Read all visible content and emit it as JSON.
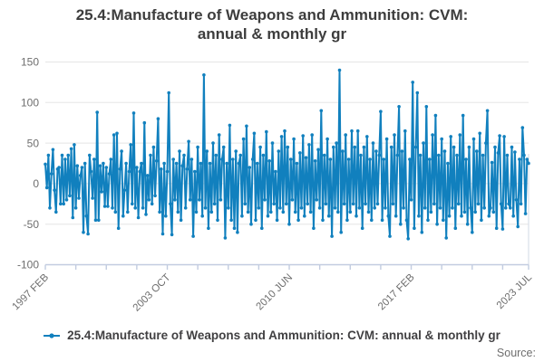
{
  "title": {
    "line1": "25.4:Manufacture of Weapons and Ammunition: CVM:",
    "line2": "annual & monthly gr"
  },
  "legend": {
    "label": "25.4:Manufacture of Weapons and Ammunition: CVM: annual & monthly gr"
  },
  "footer": {
    "source_label": "Source:"
  },
  "colors": {
    "line": "#1180be",
    "grid": "#e5e5e5",
    "axis": "#c2cce0",
    "right_border": "#d9dee8",
    "title_text": "#3d3d3d",
    "tick_text": "#6e6e6e",
    "legend_text": "#414042",
    "source_text": "#6e6e6e",
    "background": "#ffffff"
  },
  "chart_data": {
    "type": "line",
    "title": "25.4:Manufacture of Weapons and Ammunition: CVM: annual & monthly gr",
    "grid": "horizontal-only",
    "legend_position": "bottom",
    "marker": "circle",
    "y_axis": {
      "ticks": [
        150,
        100,
        50,
        0,
        -50,
        -100
      ],
      "range": [
        -100,
        150
      ]
    },
    "x_axis": {
      "start": "1997 FEB",
      "end": "2023 JUL",
      "tick_months": [
        0,
        20,
        40,
        60,
        80,
        100,
        120,
        140,
        160,
        180,
        200,
        220,
        240,
        260,
        280,
        300,
        317
      ],
      "labels": [
        {
          "month": 0,
          "label": "1997 FEB"
        },
        {
          "month": 80,
          "label": "2003 OCT"
        },
        {
          "month": 160,
          "label": "2010 JUN"
        },
        {
          "month": 240,
          "label": "2017 FEB"
        },
        {
          "month": 317,
          "label": "2023 JUL"
        }
      ]
    },
    "series": [
      {
        "name": "25.4:Manufacture of Weapons and Ammunition: CVM: annual & monthly gr",
        "frequency": "monthly",
        "values": [
          24,
          -5,
          35,
          -30,
          12,
          42,
          -8,
          -35,
          18,
          20,
          -25,
          35,
          -25,
          30,
          -20,
          35,
          -15,
          43,
          -42,
          48,
          -30,
          22,
          -18,
          10,
          20,
          -60,
          25,
          -40,
          -62,
          35,
          15,
          -18,
          30,
          -45,
          88,
          -45,
          22,
          -10,
          25,
          -28,
          20,
          -28,
          12,
          30,
          -30,
          60,
          -35,
          62,
          -55,
          18,
          40,
          -40,
          -8,
          25,
          -35,
          15,
          48,
          -25,
          87,
          -30,
          20,
          -42,
          15,
          25,
          -30,
          75,
          -38,
          10,
          -20,
          35,
          -25,
          45,
          -15,
          28,
          80,
          -35,
          18,
          -62,
          25,
          -40,
          15,
          112,
          -25,
          -63,
          30,
          -20,
          25,
          -35,
          40,
          -45,
          22,
          35,
          -30,
          18,
          52,
          -20,
          30,
          -65,
          15,
          -35,
          45,
          -20,
          25,
          -40,
          134,
          -30,
          40,
          -55,
          25,
          -35,
          50,
          -25,
          35,
          -45,
          60,
          -20,
          30,
          45,
          -67,
          25,
          -30,
          72,
          -45,
          30,
          -55,
          40,
          -60,
          25,
          35,
          -40,
          55,
          -25,
          71,
          -35,
          20,
          -50,
          30,
          62,
          -45,
          25,
          -30,
          45,
          -55,
          35,
          -20,
          64,
          -40,
          28,
          -35,
          50,
          -25,
          15,
          -45,
          40,
          -30,
          58,
          -35,
          65,
          -25,
          45,
          -50,
          30,
          -20,
          55,
          -35,
          25,
          -45,
          38,
          -30,
          59,
          -40,
          32,
          -25,
          48,
          -35,
          60,
          -55,
          28,
          -20,
          42,
          -30,
          90,
          -45,
          35,
          -25,
          55,
          -40,
          30,
          -65,
          45,
          -30,
          50,
          -35,
          140,
          -60,
          40,
          -25,
          60,
          -45,
          30,
          -35,
          65,
          -25,
          45,
          -40,
          65,
          -30,
          35,
          -55,
          45,
          -25,
          58,
          -35,
          30,
          -45,
          50,
          -30,
          40,
          -25,
          35,
          89,
          -45,
          30,
          -30,
          55,
          -40,
          -65,
          45,
          -25,
          60,
          -40,
          35,
          95,
          -50,
          40,
          -30,
          65,
          -45,
          -68,
          30,
          -20,
          125,
          -55,
          45,
          112,
          -40,
          35,
          -60,
          50,
          -30,
          95,
          -45,
          30,
          -35,
          60,
          -25,
          84,
          -50,
          35,
          -30,
          55,
          -45,
          40,
          -67,
          25,
          -40,
          58,
          -30,
          45,
          -55,
          35,
          -25,
          60,
          -40,
          84,
          -35,
          30,
          -50,
          45,
          -30,
          -60,
          55,
          -35,
          40,
          -25,
          62,
          -45,
          35,
          -30,
          50,
          90,
          -40,
          -30,
          26,
          -35,
          45,
          -55,
          38,
          59,
          -25,
          -56,
          58,
          -30,
          35,
          -25,
          -30,
          45,
          -40,
          39,
          -20,
          -53,
          30,
          -25,
          69,
          35,
          -37,
          30,
          25
        ]
      }
    ]
  }
}
